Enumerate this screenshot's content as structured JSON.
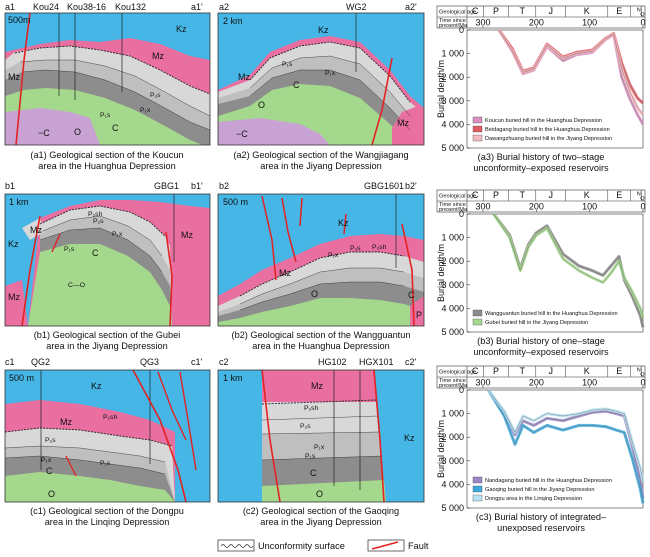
{
  "colors": {
    "kz": "#45b6e6",
    "mz": "#e96fa1",
    "upper_p": "#d8d8d8",
    "p1x": "#bfbfbf",
    "carb": "#8d8d8d",
    "ord": "#a4d88c",
    "camb": "#c7a2d2",
    "fault": "#e32222",
    "koucun": "#d98fbf",
    "beidagang": "#e05a63",
    "dawang": "#f3b9c0",
    "wangguantun": "#8a8a8a",
    "gubei": "#a4d88c",
    "nandagang": "#9a88c6",
    "gaoqing": "#39a8de",
    "dongpu": "#b9e2f5"
  },
  "sections": {
    "a1": {
      "left_tag": "a1",
      "right_tag": "a1'",
      "scale": "500m",
      "wells": [
        "Kou24",
        "Kou38-16",
        "Kou132"
      ],
      "units": {
        "kz": "Kz",
        "mz": "Mz",
        "p2s": "P₂s",
        "p1x": "P₁x",
        "p1s": "P₁s",
        "c": "C",
        "o": "O",
        "camb": "−C"
      },
      "caption_1": "(a1) Geological section of the Koucun",
      "caption_2": "area in the Huanghua Depression"
    },
    "a2": {
      "left_tag": "a2",
      "right_tag": "a2'",
      "scale": "2 km",
      "well": "WG2",
      "units": {
        "kz": "Kz",
        "mz": "Mz",
        "mz2": "Mz",
        "p1s": "P₁s",
        "p1x": "P₁x",
        "c": "C",
        "o": "O",
        "camb": "−C"
      },
      "caption_1": "(a2) Geological section of the Wangjiagang",
      "caption_2": "area in the Jiyang Depression"
    },
    "b1": {
      "left_tag": "b1",
      "right_tag": "b1'",
      "scale": "1 km",
      "well": "GBG1",
      "units": {
        "kz": "Kz",
        "mz": "Mz",
        "mz2": "Mz",
        "mz3": "Mz",
        "p2sh": "P₂sh",
        "p2s": "P₂s",
        "p1x": "P₁x",
        "p1s": "P₁s",
        "c": "C",
        "co": "C—O"
      },
      "caption_1": "(b1) Geological section of the Gubei",
      "caption_2": "area in the Jiyang Depression"
    },
    "b2": {
      "left_tag": "b2",
      "right_tag": "b2'",
      "scale": "500 m",
      "well": "GBG1601",
      "units": {
        "kz": "Kz",
        "mz": "Mz",
        "p": "P",
        "p1x": "P₁x",
        "p2s": "P₂s",
        "p2sh": "P₂sh",
        "o": "O",
        "c": "C"
      },
      "caption_1": "(b2) Geological section of the Wangguantun",
      "caption_2": "area in the Huanghua Depression"
    },
    "c1": {
      "left_tag": "c1",
      "right_tag": "c1'",
      "scale": "500 m",
      "wells": [
        "QG2",
        "QG3"
      ],
      "units": {
        "kz": "Kz",
        "mz": "Mz",
        "p2sh": "P₂sh",
        "p2s": "P₂s",
        "p1x": "P₁x",
        "p1s": "P₁s",
        "c": "C",
        "o": "O"
      },
      "caption_1": "(c1) Geological section of the Dongpu",
      "caption_2": "area in the Linqing Depression"
    },
    "c2": {
      "left_tag": "c2",
      "right_tag": "c2'",
      "scale": "1 km",
      "wells": [
        "HG102",
        "HGX101"
      ],
      "units": {
        "kz": "Kz",
        "mz": "Mz",
        "p2sh": "P₂sh",
        "p2s": "P₂s",
        "p1x": "P₁x",
        "p1s": "P₁s",
        "c": "C",
        "o": "O"
      },
      "caption_1": "(c2) Geological section of the Gaoqing",
      "caption_2": "area in the Jiyang Depression"
    }
  },
  "burial": {
    "header_age": "Geological age",
    "header_time_1": "Time since",
    "header_time_2": "present/Ma",
    "periods": [
      "C",
      "P",
      "T",
      "J",
      "K",
      "E",
      "N",
      "Q"
    ],
    "ticks": [
      "300",
      "200",
      "100",
      "0"
    ],
    "ylabel": "Burial depth/m",
    "depths": [
      "0",
      "1 000",
      "2 000",
      "3 000",
      "4 000",
      "5 000"
    ]
  },
  "chart_data": [
    {
      "type": "line",
      "xlim": [
        330,
        0
      ],
      "ylim": [
        0,
        5000
      ],
      "yreversed": true,
      "xlabel": "Time since present/Ma",
      "ylabel": "Burial depth/m",
      "caption_1": "(a3) Burial history of two–stage",
      "caption_2": "unconformity–exposed reservoirs",
      "series": [
        {
          "name": "Koucun buried hill in the Huanghua Depression",
          "color": "#d98fbf",
          "x": [
            270,
            245,
            225,
            205,
            180,
            150,
            125,
            95,
            70,
            55,
            40,
            25,
            10,
            0
          ],
          "y": [
            0,
            900,
            1850,
            1700,
            700,
            1300,
            1050,
            950,
            400,
            200,
            2000,
            2900,
            3600,
            4000
          ]
        },
        {
          "name": "Beidagang buried hill in the Huanghua Depression",
          "color": "#e05a63",
          "x": [
            270,
            245,
            225,
            205,
            180,
            150,
            125,
            95,
            70,
            55,
            40,
            25,
            10,
            0
          ],
          "y": [
            0,
            800,
            1750,
            1600,
            600,
            1150,
            950,
            850,
            350,
            150,
            1400,
            2300,
            2900,
            3100
          ]
        },
        {
          "name": "Dawangzhuang buried hill in the Jiyang Depression",
          "color": "#f3b9c0",
          "x": [
            270,
            245,
            225,
            205,
            180,
            150,
            125,
            95,
            70,
            55,
            40,
            25,
            10,
            0
          ],
          "y": [
            0,
            900,
            1800,
            1650,
            650,
            1200,
            1000,
            900,
            380,
            180,
            1650,
            2600,
            3300,
            3600
          ]
        }
      ]
    },
    {
      "type": "line",
      "xlim": [
        330,
        0
      ],
      "ylim": [
        0,
        5000
      ],
      "yreversed": true,
      "xlabel": "Time since present/Ma",
      "ylabel": "Burial depth/m",
      "caption_1": "(b3) Burial history of one–stage",
      "caption_2": "unconformity–exposed reservoirs",
      "series": [
        {
          "name": "Wangguantun buried hill in the Huanghua Depression",
          "color": "#8a8a8a",
          "x": [
            280,
            250,
            230,
            215,
            200,
            180,
            150,
            120,
            95,
            75,
            60,
            45,
            35,
            20,
            5,
            0
          ],
          "y": [
            0,
            900,
            2300,
            1300,
            800,
            500,
            1700,
            2200,
            2400,
            2600,
            2200,
            1800,
            2800,
            3500,
            4300,
            4800
          ]
        },
        {
          "name": "Gubei buried hill in the Jiyang Depression",
          "color": "#a4d88c",
          "x": [
            280,
            250,
            230,
            215,
            200,
            180,
            150,
            120,
            95,
            75,
            60,
            45,
            35,
            20,
            5,
            0
          ],
          "y": [
            0,
            1000,
            2400,
            1400,
            900,
            600,
            1900,
            2400,
            2700,
            2900,
            2500,
            2000,
            2700,
            3300,
            4000,
            4400
          ]
        }
      ]
    },
    {
      "type": "line",
      "xlim": [
        330,
        0
      ],
      "ylim": [
        0,
        5000
      ],
      "yreversed": true,
      "xlabel": "Time since present/Ma",
      "ylabel": "Burial depth/m",
      "caption_1": "(c3) Burial history of integrated–",
      "caption_2": "unexposed reservoirs",
      "series": [
        {
          "name": "Nandagang buried hill in the Huanghua Depression",
          "color": "#9a88c6",
          "x": [
            290,
            260,
            240,
            225,
            205,
            180,
            150,
            120,
            95,
            70,
            50,
            35,
            20,
            5,
            0
          ],
          "y": [
            0,
            1000,
            1900,
            1300,
            1500,
            1200,
            1300,
            1100,
            950,
            900,
            1000,
            1100,
            2400,
            3800,
            4600
          ]
        },
        {
          "name": "Gaoqing buried hill in the Jiyang Depression",
          "color": "#39a8de",
          "x": [
            290,
            260,
            240,
            225,
            205,
            180,
            150,
            120,
            95,
            70,
            50,
            35,
            20,
            5,
            0
          ],
          "y": [
            0,
            1100,
            2300,
            1500,
            1800,
            1500,
            1700,
            1500,
            1500,
            1550,
            1700,
            1800,
            2900,
            4200,
            4800
          ]
        },
        {
          "name": "Dongpu area in the Linqing Depression",
          "color": "#b9e2f5",
          "x": [
            290,
            260,
            240,
            225,
            205,
            180,
            150,
            120,
            95,
            70,
            50,
            35,
            20,
            5,
            0
          ],
          "y": [
            0,
            900,
            1800,
            1100,
            1300,
            1000,
            1100,
            1000,
            850,
            800,
            900,
            1000,
            2200,
            3300,
            3900
          ]
        }
      ]
    }
  ],
  "legend": {
    "unconformity": "Unconformity surface",
    "fault": "Fault"
  }
}
